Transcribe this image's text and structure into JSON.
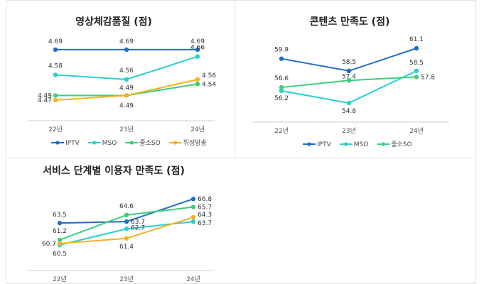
{
  "chart_data": [
    {
      "type": "line",
      "title": "영상체감품질 (점)",
      "categories": [
        "22년",
        "23년",
        "24년"
      ],
      "series": [
        {
          "name": "IPTV",
          "values": [
            4.69,
            4.69,
            4.69
          ],
          "color": "#1f6fc5"
        },
        {
          "name": "MSO",
          "values": [
            4.58,
            4.56,
            4.66
          ],
          "color": "#2bcfcf"
        },
        {
          "name": "중소SO",
          "values": [
            4.49,
            4.49,
            4.54
          ],
          "color": "#3ccf7a"
        },
        {
          "name": "위성방송",
          "values": [
            4.47,
            4.49,
            4.56
          ],
          "color": "#f5b323"
        }
      ],
      "ylim": [
        4.38,
        4.73
      ],
      "grid": false,
      "legend": "bottom"
    },
    {
      "type": "line",
      "title": "콘텐츠 만족도 (점)",
      "categories": [
        "22년",
        "23년",
        "24년"
      ],
      "series": [
        {
          "name": "IPTV",
          "values": [
            59.9,
            58.5,
            61.1
          ],
          "color": "#1f6fc5"
        },
        {
          "name": "MSO",
          "values": [
            56.2,
            54.8,
            58.5
          ],
          "color": "#2bcfcf"
        },
        {
          "name": "중소SO",
          "values": [
            56.6,
            57.4,
            57.8
          ],
          "color": "#3ccf7a"
        }
      ],
      "ylim": [
        52.6,
        62.0
      ],
      "grid": false,
      "legend": "bottom"
    },
    {
      "type": "line",
      "title": "서비스 단계별 이용자 만족도 (점)",
      "categories": [
        "22년",
        "23년",
        "24년"
      ],
      "series": [
        {
          "name": "IPTV",
          "values": [
            63.5,
            63.7,
            66.8
          ],
          "color": "#1f6fc5"
        },
        {
          "name": "MSO",
          "values": [
            60.5,
            62.7,
            63.7
          ],
          "color": "#2bcfcf"
        },
        {
          "name": "중소SO",
          "values": [
            61.2,
            64.6,
            65.7
          ],
          "color": "#3ccf7a"
        },
        {
          "name": "위성방송",
          "values": [
            60.7,
            61.4,
            64.3
          ],
          "color": "#f5b323"
        }
      ],
      "ylim": [
        57.0,
        67.6
      ],
      "grid": false,
      "legend": "bottom"
    }
  ]
}
